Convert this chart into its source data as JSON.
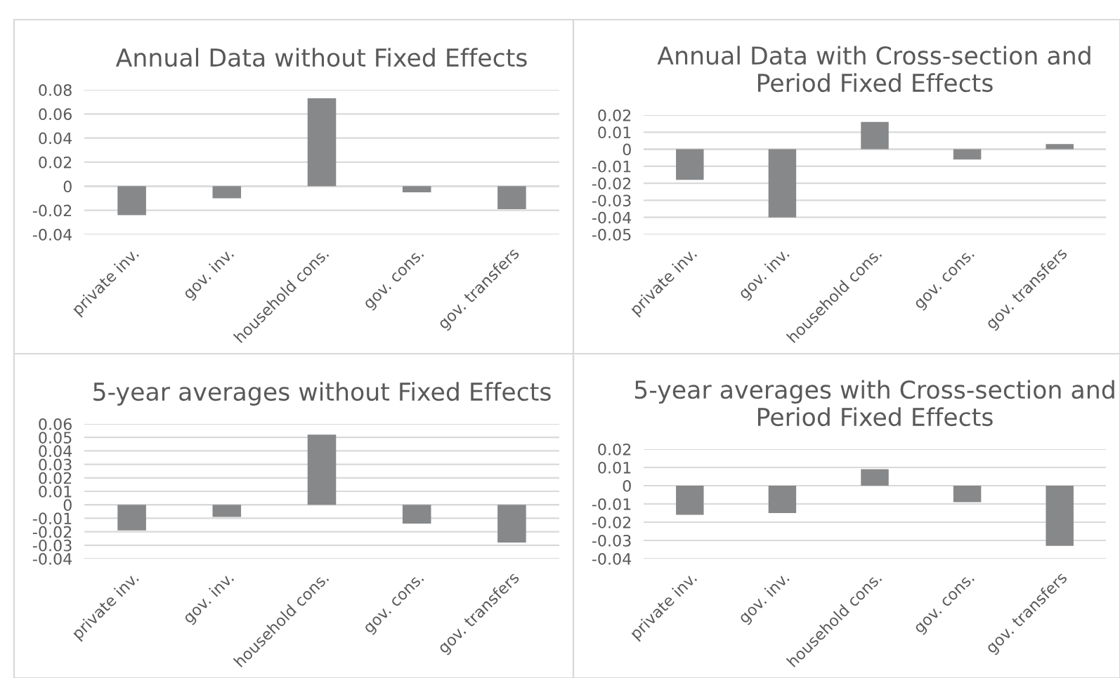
{
  "chart_data": [
    {
      "type": "bar",
      "title": "Annual Data without Fixed Effects",
      "categories": [
        "private inv.",
        "gov. inv.",
        "household cons.",
        "gov. cons.",
        "gov. transfers"
      ],
      "values": [
        -0.024,
        -0.01,
        0.073,
        -0.005,
        -0.019
      ],
      "color": "#87888a",
      "ylim": [
        -0.04,
        0.08
      ],
      "yticks": [
        -0.04,
        -0.02,
        0,
        0.02,
        0.04,
        0.06,
        0.08
      ],
      "grid": "y"
    },
    {
      "type": "bar",
      "title": "Annual Data with Cross-section and\nPeriod Fixed Effects",
      "categories": [
        "private inv.",
        "gov. inv.",
        "household cons.",
        "gov. cons.",
        "gov. transfers"
      ],
      "values": [
        -0.018,
        -0.04,
        0.016,
        -0.006,
        0.003
      ],
      "color": "#87888a",
      "ylim": [
        -0.05,
        0.02
      ],
      "yticks": [
        -0.05,
        -0.04,
        -0.03,
        -0.02,
        -0.01,
        0,
        0.01,
        0.02
      ],
      "grid": "y"
    },
    {
      "type": "bar",
      "title": "5-year averages without Fixed Effects",
      "categories": [
        "private inv.",
        "gov. inv.",
        "household cons.",
        "gov. cons.",
        "gov. transfers"
      ],
      "values": [
        -0.019,
        -0.009,
        0.052,
        -0.014,
        -0.028
      ],
      "color": "#87888a",
      "ylim": [
        -0.04,
        0.06
      ],
      "yticks": [
        -0.04,
        -0.03,
        -0.02,
        -0.01,
        0,
        0.01,
        0.02,
        0.03,
        0.04,
        0.05,
        0.06
      ],
      "grid": "y"
    },
    {
      "type": "bar",
      "title": "5-year averages with Cross-section and\nPeriod Fixed Effects",
      "categories": [
        "private inv.",
        "gov. inv.",
        "household cons.",
        "gov. cons.",
        "gov. transfers"
      ],
      "values": [
        -0.016,
        -0.015,
        0.009,
        -0.009,
        -0.033
      ],
      "color": "#87888a",
      "ylim": [
        -0.04,
        0.02
      ],
      "yticks": [
        -0.04,
        -0.03,
        -0.02,
        -0.01,
        0,
        0.01,
        0.02
      ],
      "grid": "y"
    }
  ]
}
